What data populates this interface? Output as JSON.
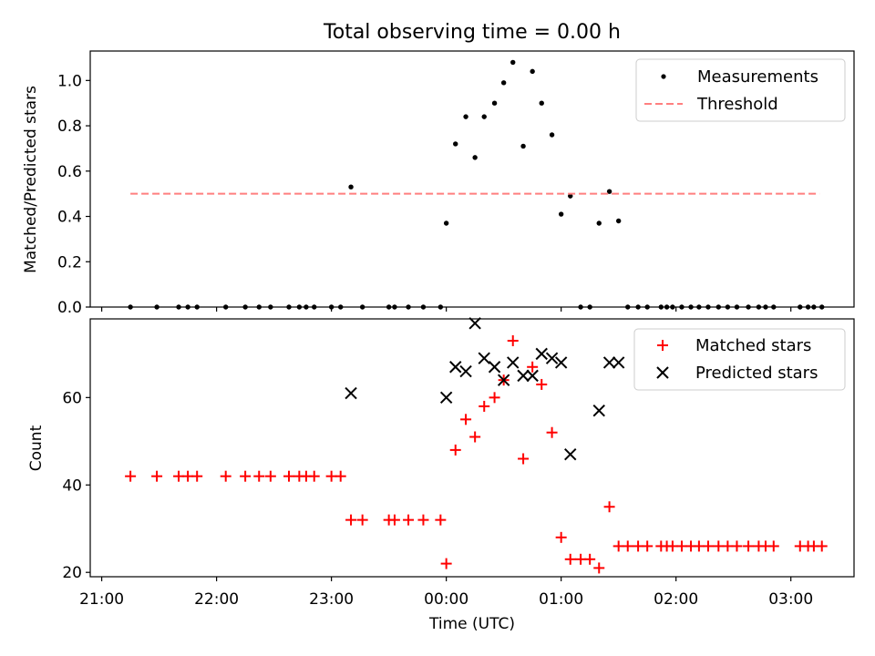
{
  "figure": {
    "title": "Total observing time = 0.00 h",
    "xlabel": "Time (UTC)",
    "x_tick_labels": [
      "21:00",
      "22:00",
      "23:00",
      "00:00",
      "01:00",
      "02:00",
      "03:00"
    ]
  },
  "chart_data": [
    {
      "type": "scatter",
      "ylabel": "Matched/Predicted stars",
      "xlim_hours": [
        20.9,
        27.55
      ],
      "ylim": [
        0,
        1.13
      ],
      "y_ticks": [
        "0.0",
        "0.2",
        "0.4",
        "0.6",
        "0.8",
        "1.0"
      ],
      "legend_position": "top-right",
      "series": [
        {
          "name": "Measurements",
          "color": "#000000",
          "marker": "dot",
          "points": [
            [
              21.25,
              0
            ],
            [
              21.48,
              0
            ],
            [
              21.67,
              0
            ],
            [
              21.75,
              0
            ],
            [
              21.83,
              0
            ],
            [
              22.08,
              0
            ],
            [
              22.25,
              0
            ],
            [
              22.37,
              0
            ],
            [
              22.47,
              0
            ],
            [
              22.63,
              0
            ],
            [
              22.72,
              0
            ],
            [
              22.78,
              0
            ],
            [
              22.85,
              0
            ],
            [
              23.0,
              0
            ],
            [
              23.08,
              0
            ],
            [
              23.17,
              0.53
            ],
            [
              23.27,
              0
            ],
            [
              23.5,
              0
            ],
            [
              23.55,
              0
            ],
            [
              23.67,
              0
            ],
            [
              23.8,
              0
            ],
            [
              23.95,
              0
            ],
            [
              24.0,
              0.37
            ],
            [
              24.08,
              0.72
            ],
            [
              24.17,
              0.84
            ],
            [
              24.25,
              0.66
            ],
            [
              24.33,
              0.84
            ],
            [
              24.42,
              0.9
            ],
            [
              24.5,
              0.99
            ],
            [
              24.58,
              1.08
            ],
            [
              24.67,
              0.71
            ],
            [
              24.75,
              1.04
            ],
            [
              24.83,
              0.9
            ],
            [
              24.92,
              0.76
            ],
            [
              25.0,
              0.41
            ],
            [
              25.08,
              0.49
            ],
            [
              25.17,
              0
            ],
            [
              25.25,
              0
            ],
            [
              25.33,
              0.37
            ],
            [
              25.42,
              0.51
            ],
            [
              25.5,
              0.38
            ],
            [
              25.58,
              0
            ],
            [
              25.67,
              0
            ],
            [
              25.75,
              0
            ],
            [
              25.87,
              0
            ],
            [
              25.92,
              0
            ],
            [
              25.97,
              0
            ],
            [
              26.05,
              0
            ],
            [
              26.13,
              0
            ],
            [
              26.2,
              0
            ],
            [
              26.28,
              0
            ],
            [
              26.37,
              0
            ],
            [
              26.45,
              0
            ],
            [
              26.53,
              0
            ],
            [
              26.63,
              0
            ],
            [
              26.72,
              0
            ],
            [
              26.78,
              0
            ],
            [
              26.85,
              0
            ],
            [
              27.08,
              0
            ],
            [
              27.15,
              0
            ],
            [
              27.2,
              0
            ],
            [
              27.27,
              0
            ]
          ]
        },
        {
          "name": "Threshold",
          "color": "#ff7f7f",
          "style": "dashed",
          "points": [
            [
              21.25,
              0.5
            ],
            [
              27.25,
              0.5
            ]
          ]
        }
      ]
    },
    {
      "type": "scatter",
      "ylabel": "Count",
      "xlim_hours": [
        20.9,
        27.55
      ],
      "ylim": [
        19,
        78
      ],
      "y_ticks": [
        "20",
        "40",
        "60"
      ],
      "legend_position": "top-right",
      "series": [
        {
          "name": "Matched stars",
          "color": "#ff0000",
          "marker": "plus",
          "points": [
            [
              21.25,
              42
            ],
            [
              21.48,
              42
            ],
            [
              21.67,
              42
            ],
            [
              21.75,
              42
            ],
            [
              21.83,
              42
            ],
            [
              22.08,
              42
            ],
            [
              22.25,
              42
            ],
            [
              22.37,
              42
            ],
            [
              22.47,
              42
            ],
            [
              22.63,
              42
            ],
            [
              22.72,
              42
            ],
            [
              22.78,
              42
            ],
            [
              22.85,
              42
            ],
            [
              23.0,
              42
            ],
            [
              23.08,
              42
            ],
            [
              23.17,
              32
            ],
            [
              23.27,
              32
            ],
            [
              23.5,
              32
            ],
            [
              23.55,
              32
            ],
            [
              23.67,
              32
            ],
            [
              23.8,
              32
            ],
            [
              23.95,
              32
            ],
            [
              24.0,
              22
            ],
            [
              24.08,
              48
            ],
            [
              24.17,
              55
            ],
            [
              24.25,
              51
            ],
            [
              24.33,
              58
            ],
            [
              24.42,
              60
            ],
            [
              24.5,
              64
            ],
            [
              24.58,
              73
            ],
            [
              24.67,
              46
            ],
            [
              24.75,
              67
            ],
            [
              24.83,
              63
            ],
            [
              24.92,
              52
            ],
            [
              25.0,
              28
            ],
            [
              25.08,
              23
            ],
            [
              25.17,
              23
            ],
            [
              25.25,
              23
            ],
            [
              25.33,
              21
            ],
            [
              25.42,
              35
            ],
            [
              25.5,
              26
            ],
            [
              25.58,
              26
            ],
            [
              25.67,
              26
            ],
            [
              25.75,
              26
            ],
            [
              25.87,
              26
            ],
            [
              25.92,
              26
            ],
            [
              25.97,
              26
            ],
            [
              26.05,
              26
            ],
            [
              26.13,
              26
            ],
            [
              26.2,
              26
            ],
            [
              26.28,
              26
            ],
            [
              26.37,
              26
            ],
            [
              26.45,
              26
            ],
            [
              26.53,
              26
            ],
            [
              26.63,
              26
            ],
            [
              26.72,
              26
            ],
            [
              26.78,
              26
            ],
            [
              26.85,
              26
            ],
            [
              27.08,
              26
            ],
            [
              27.15,
              26
            ],
            [
              27.2,
              26
            ],
            [
              27.27,
              26
            ]
          ]
        },
        {
          "name": "Predicted stars",
          "color": "#000000",
          "marker": "x",
          "points": [
            [
              23.17,
              61
            ],
            [
              24.0,
              60
            ],
            [
              24.08,
              67
            ],
            [
              24.17,
              66
            ],
            [
              24.25,
              77
            ],
            [
              24.33,
              69
            ],
            [
              24.42,
              67
            ],
            [
              24.5,
              64
            ],
            [
              24.58,
              68
            ],
            [
              24.67,
              65
            ],
            [
              24.75,
              65
            ],
            [
              24.83,
              70
            ],
            [
              24.92,
              69
            ],
            [
              25.0,
              68
            ],
            [
              25.08,
              47
            ],
            [
              25.33,
              57
            ],
            [
              25.42,
              68
            ],
            [
              25.5,
              68
            ]
          ]
        }
      ]
    }
  ]
}
